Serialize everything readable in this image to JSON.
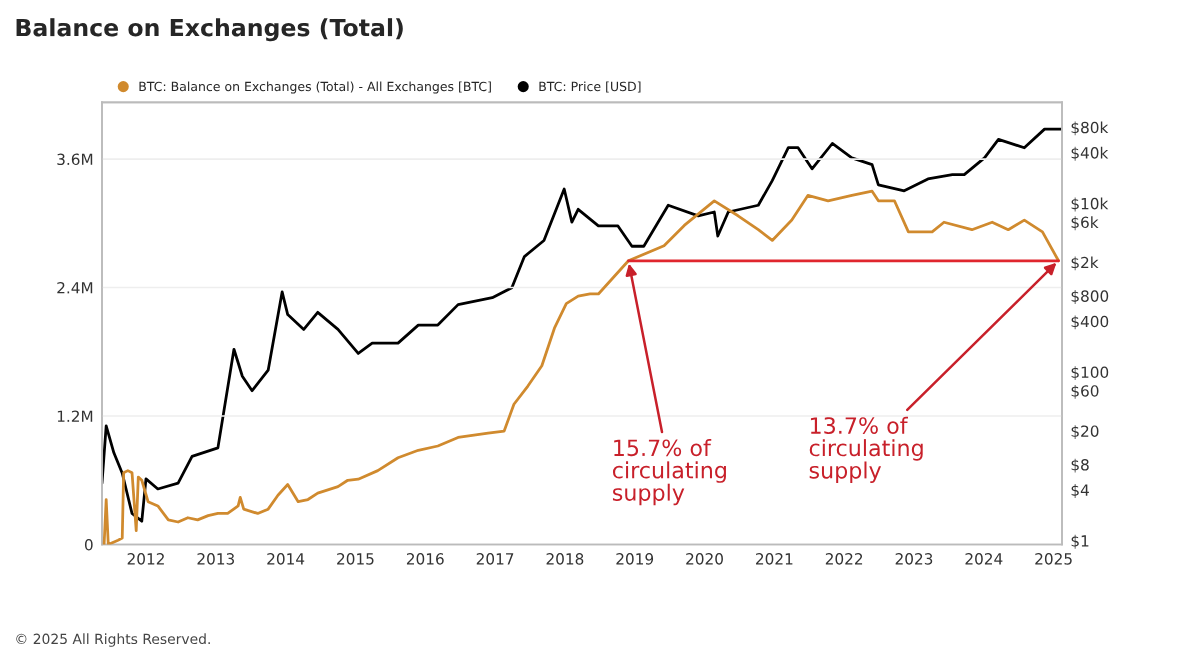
{
  "chart_data": {
    "type": "line",
    "title": "Balance on Exchanges (Total)",
    "annotations": [
      {
        "text": "15.7% of\ncirculating\nsupply",
        "x": 2018.91,
        "y": 2.65
      },
      {
        "text": "13.7% of\ncirculating\nsupply",
        "x": 2025.07,
        "y": 2.65
      },
      "© 2025 All Rights Reserved."
    ],
    "xlim": [
      2011.37,
      2025.12
    ],
    "xticks": [
      2012,
      2013,
      2014,
      2015,
      2016,
      2017,
      2018,
      2019,
      2020,
      2021,
      2022,
      2023,
      2024,
      2025
    ],
    "ylim": [
      0,
      4.13
    ],
    "yticks": [
      0,
      {
        "value": 1.2,
        "label": "1.2M"
      },
      {
        "value": 2.4,
        "label": "2.4M"
      },
      {
        "value": 3.6,
        "label": "3.6M"
      }
    ],
    "y2lim": [
      0.9,
      158000
    ],
    "y2ticks": [
      {
        "value": 1,
        "label": "$1"
      },
      {
        "value": 4,
        "label": "$4"
      },
      {
        "value": 8,
        "label": "$8"
      },
      {
        "value": 20,
        "label": "$20"
      },
      {
        "value": 60,
        "label": "$60"
      },
      {
        "value": 100,
        "label": "$100"
      },
      {
        "value": 400,
        "label": "$400"
      },
      {
        "value": 800,
        "label": "$800"
      },
      {
        "value": 2000,
        "label": "$2k"
      },
      {
        "value": 6000,
        "label": "$6k"
      },
      {
        "value": 10000,
        "label": "$10k"
      },
      {
        "value": 40000,
        "label": "$40k"
      },
      {
        "value": 80000,
        "label": "$80k"
      }
    ],
    "log": "y2",
    "grid": "y",
    "legend": "top left",
    "series": [
      {
        "name": "BTC: Balance on Exchanges (Total) - All Exchanges [BTC]",
        "color": "#d08a2e",
        "axis": "y",
        "x": [
          2011.4,
          2011.43,
          2011.46,
          2011.6,
          2011.66,
          2011.68,
          2011.74,
          2011.8,
          2011.86,
          2011.89,
          2011.94,
          2012.03,
          2012.17,
          2012.32,
          2012.46,
          2012.6,
          2012.74,
          2012.89,
          2013.03,
          2013.17,
          2013.32,
          2013.35,
          2013.4,
          2013.6,
          2013.75,
          2013.89,
          2014.03,
          2014.18,
          2014.32,
          2014.46,
          2014.75,
          2014.89,
          2015.04,
          2015.32,
          2015.61,
          2015.9,
          2016.18,
          2016.47,
          2016.9,
          2017.13,
          2017.27,
          2017.47,
          2017.67,
          2017.85,
          2018.02,
          2018.19,
          2018.36,
          2018.48,
          2018.91,
          2019.42,
          2019.71,
          2020.14,
          2020.48,
          2020.77,
          2020.97,
          2021.25,
          2021.48,
          2021.77,
          2022.11,
          2022.4,
          2022.49,
          2022.72,
          2022.92,
          2023.26,
          2023.43,
          2023.83,
          2024.12,
          2024.35,
          2024.58,
          2024.84,
          2025.07
        ],
        "values": [
          0,
          0.42,
          0,
          0.04,
          0.06,
          0.67,
          0.69,
          0.67,
          0.13,
          0.63,
          0.6,
          0.4,
          0.36,
          0.23,
          0.21,
          0.25,
          0.23,
          0.27,
          0.29,
          0.29,
          0.36,
          0.44,
          0.33,
          0.29,
          0.33,
          0.46,
          0.56,
          0.4,
          0.42,
          0.48,
          0.54,
          0.6,
          0.61,
          0.69,
          0.81,
          0.88,
          0.92,
          1.0,
          1.04,
          1.06,
          1.31,
          1.48,
          1.67,
          2.02,
          2.25,
          2.32,
          2.34,
          2.34,
          2.65,
          2.79,
          2.98,
          3.21,
          3.07,
          2.94,
          2.84,
          3.03,
          3.26,
          3.21,
          3.26,
          3.3,
          3.21,
          3.21,
          2.92,
          2.92,
          3.01,
          2.94,
          3.01,
          2.94,
          3.03,
          2.92,
          2.65
        ]
      },
      {
        "name": "BTC: Price [USD]",
        "color": "#000000",
        "axis": "y2",
        "x": [
          2011.37,
          2011.43,
          2011.54,
          2011.66,
          2011.8,
          2011.94,
          2012.0,
          2012.17,
          2012.46,
          2012.66,
          2013.03,
          2013.26,
          2013.38,
          2013.52,
          2013.75,
          2013.95,
          2014.03,
          2014.26,
          2014.46,
          2014.75,
          2015.04,
          2015.24,
          2015.61,
          2015.9,
          2016.18,
          2016.47,
          2016.96,
          2017.24,
          2017.42,
          2017.7,
          2017.99,
          2018.1,
          2018.19,
          2018.48,
          2018.76,
          2018.96,
          2019.13,
          2019.48,
          2019.91,
          2020.14,
          2020.19,
          2020.34,
          2020.77,
          2020.97,
          2021.2,
          2021.34,
          2021.54,
          2021.83,
          2022.11,
          2022.4,
          2022.49,
          2022.86,
          2023.2,
          2023.55,
          2023.72,
          2024.01,
          2024.21,
          2024.58,
          2024.87,
          2025.12
        ],
        "values": [
          4.8,
          23,
          11,
          6.3,
          2.1,
          1.7,
          5.4,
          4.1,
          4.8,
          10,
          12.6,
          186,
          89,
          60,
          105,
          890,
          480,
          320,
          510,
          320,
          166,
          220,
          220,
          360,
          360,
          630,
          760,
          1000,
          2340,
          3630,
          14800,
          6000,
          8500,
          5400,
          5400,
          3100,
          3100,
          9500,
          7100,
          7900,
          4100,
          7900,
          9500,
          18600,
          45700,
          45700,
          25700,
          51300,
          34700,
          28800,
          16600,
          14100,
          19500,
          21900,
          21900,
          34700,
          57500,
          45700,
          75900,
          75900
        ]
      },
      {
        "color": "#e0262e",
        "axis": "y",
        "x": [
          2018.91,
          2025.07
        ],
        "values": [
          2.65,
          2.65
        ]
      }
    ]
  }
}
